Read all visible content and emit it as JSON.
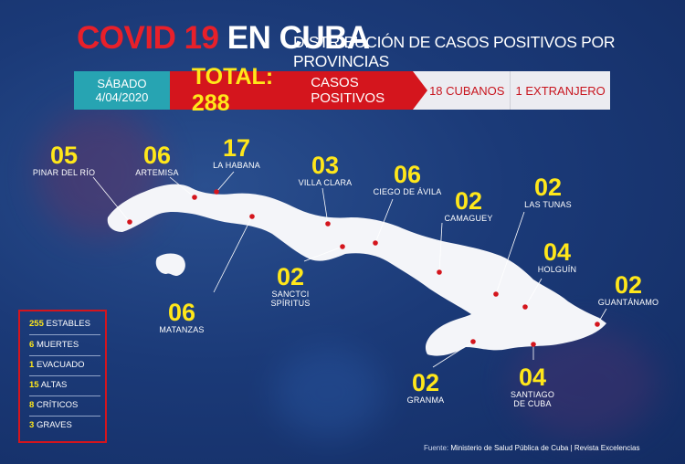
{
  "header": {
    "title_red": "COVID 19",
    "title_white": "EN CUBA",
    "subtitle": "DISTRIBUCIÓN DE CASOS POSITIVOS POR PROVINCIAS"
  },
  "summary": {
    "day": "SÁBADO",
    "date": "4/04/2020",
    "total_label": "TOTAL: 288",
    "cases_label": "CASOS POSITIVOS",
    "cubans": "18 CUBANOS",
    "foreigners": "1 EXTRANJERO"
  },
  "provinces": [
    {
      "count": "05",
      "name": "PINAR DEL RÍO"
    },
    {
      "count": "06",
      "name": "ARTEMISA"
    },
    {
      "count": "17",
      "name": "LA HABANA"
    },
    {
      "count": "06",
      "name": "MATANZAS"
    },
    {
      "count": "03",
      "name": "VILLA CLARA"
    },
    {
      "count": "02",
      "name": "SANCTCI SPÍRITUS"
    },
    {
      "count": "06",
      "name": "CIEGO DE ÁVILA"
    },
    {
      "count": "02",
      "name": "CAMAGUEY"
    },
    {
      "count": "02",
      "name": "LAS TUNAS"
    },
    {
      "count": "04",
      "name": "HOLGUÍN"
    },
    {
      "count": "02",
      "name": "GRANMA"
    },
    {
      "count": "04",
      "name": "SANTIAGO DE CUBA"
    },
    {
      "count": "02",
      "name": "GUANTÁNAMO"
    }
  ],
  "stats": [
    {
      "value": "255",
      "label": "ESTABLES"
    },
    {
      "value": "6",
      "label": "MUERTES"
    },
    {
      "value": "1",
      "label": "EVACUADO"
    },
    {
      "value": "15",
      "label": "ALTAS"
    },
    {
      "value": "8",
      "label": "CRÍTICOS"
    },
    {
      "value": "3",
      "label": "GRAVES"
    }
  ],
  "source": {
    "label": "Fuente:",
    "text": "Ministerio de Salud Pública de Cuba  |  Revista Excelencias"
  },
  "colors": {
    "background": "#1b3a78",
    "accent_red": "#d4151d",
    "accent_yellow": "#ffe71a",
    "date_teal": "#27a4b2",
    "island": "#f4f5f9"
  }
}
